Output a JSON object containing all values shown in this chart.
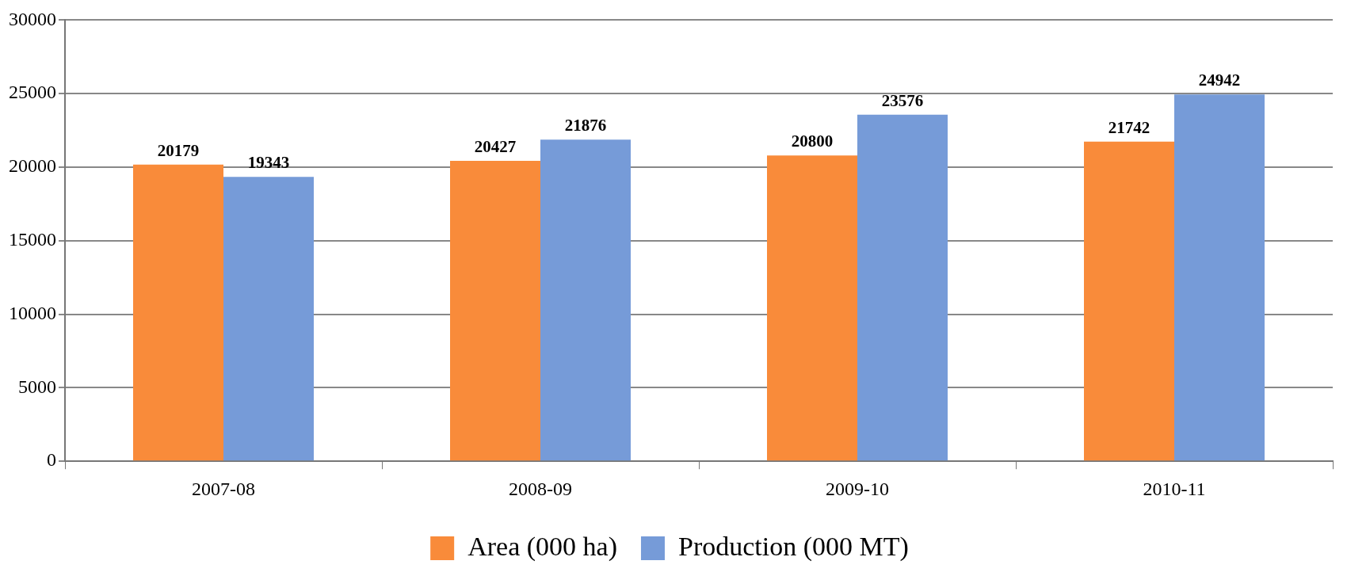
{
  "chart_data": {
    "type": "bar",
    "categories": [
      "2007-08",
      "2008-09",
      "2009-10",
      "2010-11"
    ],
    "series": [
      {
        "name": "Area (000 ha)",
        "color": "#f98b3a",
        "values": [
          20179,
          20427,
          20800,
          21742
        ]
      },
      {
        "name": "Production (000 MT)",
        "color": "#769bd8",
        "values": [
          19343,
          21876,
          23576,
          24942
        ]
      }
    ],
    "ylim": [
      0,
      30000
    ],
    "yticks": [
      0,
      5000,
      10000,
      15000,
      20000,
      25000,
      30000
    ],
    "grid": "y",
    "legend": "bottom",
    "data_labels": true
  }
}
